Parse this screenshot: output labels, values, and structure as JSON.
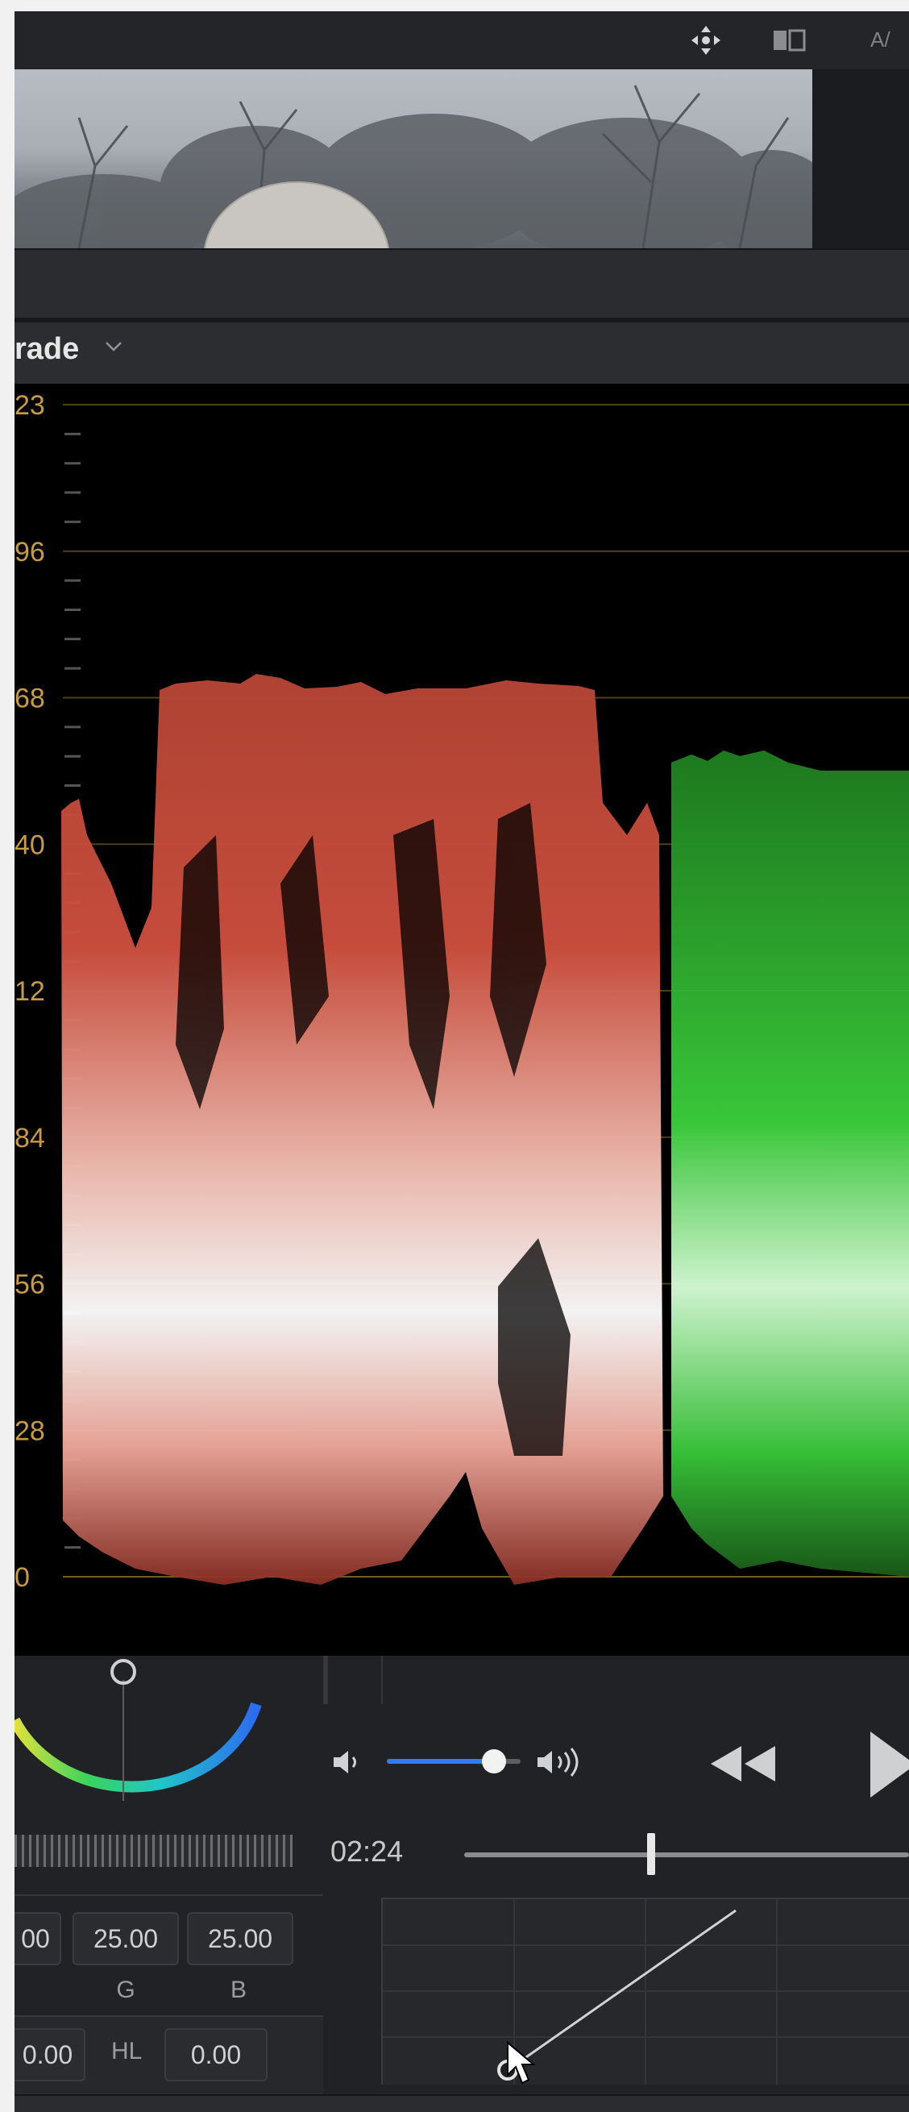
{
  "toolbar": {
    "icons": [
      "move-arrows-icon",
      "compare-icon"
    ],
    "ab_label": "A/"
  },
  "scope": {
    "title": "rade",
    "dropdown_icon": "chevron-down-icon",
    "tick_labels": [
      "23",
      "96",
      "68",
      "40",
      "12",
      "84",
      "56",
      "28",
      "0"
    ]
  },
  "audio": {
    "volume_level": 0.8,
    "time": "02:24",
    "scrub_position": 0.42
  },
  "color": {
    "values": [
      "00",
      "25.00",
      "25.00"
    ],
    "labels": [
      "",
      "G",
      "B"
    ],
    "field_left": "0.00",
    "hl_label": "HL",
    "hl_value": "0.00"
  },
  "colors": {
    "accent": "#2f7cf6",
    "scope_red": "#e06a5c",
    "scope_green": "#3fd23f",
    "graticule": "#6d5b2a"
  }
}
